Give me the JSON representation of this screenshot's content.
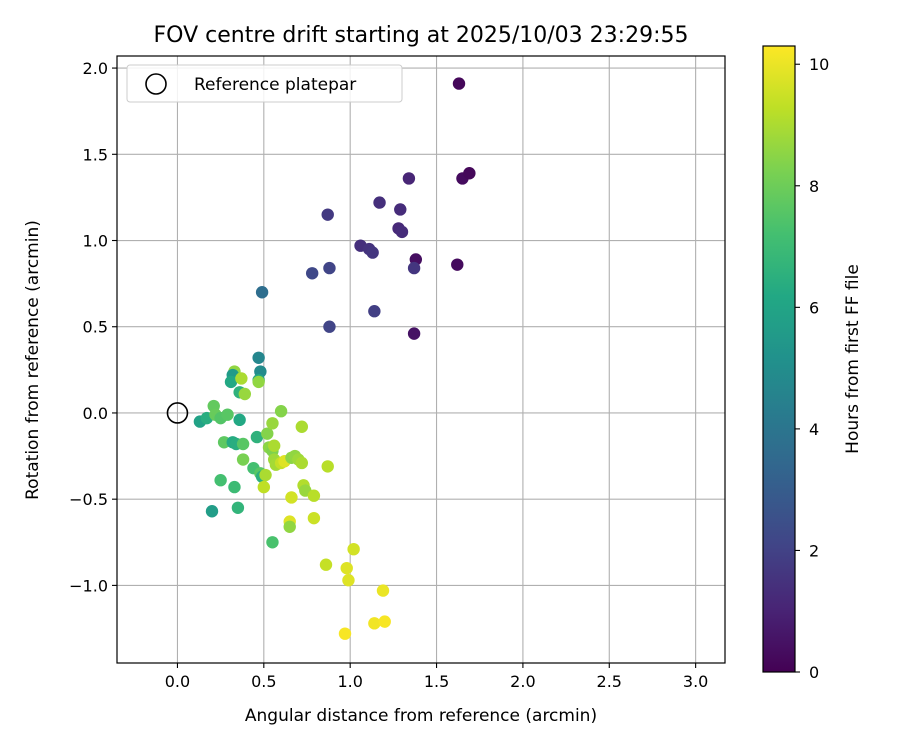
{
  "chart_data": {
    "type": "scatter",
    "title": "FOV centre drift starting at 2025/10/03 23:29:55",
    "xlabel": "Angular distance from reference (arcmin)",
    "ylabel": "Rotation from reference (arcmin)",
    "xlim": [
      -0.35,
      3.17
    ],
    "ylim": [
      -1.45,
      2.07
    ],
    "xticks": [
      0.0,
      0.5,
      1.0,
      1.5,
      2.0,
      2.5,
      3.0
    ],
    "xtick_labels": [
      "0.0",
      "0.5",
      "1.0",
      "1.5",
      "2.0",
      "2.5",
      "3.0"
    ],
    "yticks": [
      -1.0,
      -0.5,
      0.0,
      0.5,
      1.0,
      1.5,
      2.0
    ],
    "ytick_labels": [
      "−1.0",
      "−0.5",
      "0.0",
      "0.5",
      "1.0",
      "1.5",
      "2.0"
    ],
    "grid": true,
    "legend": {
      "placement": "top-left",
      "label": "Reference platepar"
    },
    "reference_point": {
      "x": 0.0,
      "y": 0.0
    },
    "colorbar": {
      "label": "Hours from first FF file",
      "range": [
        0,
        10.3
      ],
      "ticks": [
        0,
        2,
        4,
        6,
        8,
        10
      ],
      "tick_labels": [
        "0",
        "2",
        "4",
        "6",
        "8",
        "10"
      ],
      "colormap": "viridis"
    },
    "points": [
      {
        "x": 1.63,
        "y": 1.91,
        "h": 0.2
      },
      {
        "x": 1.65,
        "y": 1.36,
        "h": 0.3
      },
      {
        "x": 1.69,
        "y": 1.39,
        "h": 0.2
      },
      {
        "x": 1.34,
        "y": 1.36,
        "h": 1.1
      },
      {
        "x": 1.38,
        "y": 0.89,
        "h": 0.4
      },
      {
        "x": 1.62,
        "y": 0.86,
        "h": 0.3
      },
      {
        "x": 1.37,
        "y": 0.46,
        "h": 0.5
      },
      {
        "x": 1.17,
        "y": 1.22,
        "h": 1.4
      },
      {
        "x": 1.29,
        "y": 1.18,
        "h": 1.3
      },
      {
        "x": 1.28,
        "y": 1.07,
        "h": 1.2
      },
      {
        "x": 1.3,
        "y": 1.05,
        "h": 1.3
      },
      {
        "x": 1.37,
        "y": 0.84,
        "h": 1.6
      },
      {
        "x": 0.87,
        "y": 1.15,
        "h": 1.7
      },
      {
        "x": 1.06,
        "y": 0.97,
        "h": 1.4
      },
      {
        "x": 1.11,
        "y": 0.95,
        "h": 1.5
      },
      {
        "x": 1.13,
        "y": 0.93,
        "h": 1.6
      },
      {
        "x": 1.14,
        "y": 0.59,
        "h": 1.9
      },
      {
        "x": 0.78,
        "y": 0.81,
        "h": 2.2
      },
      {
        "x": 0.88,
        "y": 0.84,
        "h": 2.1
      },
      {
        "x": 0.88,
        "y": 0.5,
        "h": 2.1
      },
      {
        "x": 0.49,
        "y": 0.7,
        "h": 3.7
      },
      {
        "x": 0.47,
        "y": 0.32,
        "h": 4.7
      },
      {
        "x": 0.48,
        "y": 0.24,
        "h": 4.9
      },
      {
        "x": 0.47,
        "y": 0.19,
        "h": 6.0
      },
      {
        "x": 0.33,
        "y": 0.24,
        "h": 8.6
      },
      {
        "x": 0.32,
        "y": 0.22,
        "h": 5.6
      },
      {
        "x": 0.31,
        "y": 0.18,
        "h": 6.2
      },
      {
        "x": 0.37,
        "y": 0.2,
        "h": 9.0
      },
      {
        "x": 0.36,
        "y": 0.12,
        "h": 6.6
      },
      {
        "x": 0.39,
        "y": 0.11,
        "h": 8.7
      },
      {
        "x": 0.47,
        "y": 0.18,
        "h": 8.6
      },
      {
        "x": 0.13,
        "y": -0.05,
        "h": 5.9
      },
      {
        "x": 0.17,
        "y": -0.03,
        "h": 6.4
      },
      {
        "x": 0.21,
        "y": 0.04,
        "h": 7.8
      },
      {
        "x": 0.22,
        "y": -0.01,
        "h": 7.9
      },
      {
        "x": 0.25,
        "y": -0.03,
        "h": 7.5
      },
      {
        "x": 0.29,
        "y": -0.01,
        "h": 7.6
      },
      {
        "x": 0.36,
        "y": -0.04,
        "h": 6.2
      },
      {
        "x": 0.27,
        "y": -0.17,
        "h": 7.7
      },
      {
        "x": 0.32,
        "y": -0.17,
        "h": 6.3
      },
      {
        "x": 0.34,
        "y": -0.18,
        "h": 6.4
      },
      {
        "x": 0.38,
        "y": -0.18,
        "h": 7.6
      },
      {
        "x": 0.46,
        "y": -0.14,
        "h": 6.6
      },
      {
        "x": 0.52,
        "y": -0.12,
        "h": 8.4
      },
      {
        "x": 0.55,
        "y": -0.06,
        "h": 8.7
      },
      {
        "x": 0.6,
        "y": 0.01,
        "h": 8.4
      },
      {
        "x": 0.38,
        "y": -0.27,
        "h": 8.2
      },
      {
        "x": 0.44,
        "y": -0.32,
        "h": 7.2
      },
      {
        "x": 0.48,
        "y": -0.35,
        "h": 7.6
      },
      {
        "x": 0.49,
        "y": -0.37,
        "h": 6.5
      },
      {
        "x": 0.51,
        "y": -0.36,
        "h": 9.0
      },
      {
        "x": 0.53,
        "y": -0.2,
        "h": 8.5
      },
      {
        "x": 0.55,
        "y": -0.22,
        "h": 8.3
      },
      {
        "x": 0.56,
        "y": -0.19,
        "h": 9.0
      },
      {
        "x": 0.56,
        "y": -0.27,
        "h": 8.8
      },
      {
        "x": 0.57,
        "y": -0.3,
        "h": 8.9
      },
      {
        "x": 0.6,
        "y": -0.29,
        "h": 9.4
      },
      {
        "x": 0.62,
        "y": -0.28,
        "h": 9.8
      },
      {
        "x": 0.66,
        "y": -0.26,
        "h": 8.5
      },
      {
        "x": 0.68,
        "y": -0.25,
        "h": 8.6
      },
      {
        "x": 0.7,
        "y": -0.27,
        "h": 8.8
      },
      {
        "x": 0.72,
        "y": -0.29,
        "h": 9.0
      },
      {
        "x": 0.72,
        "y": -0.08,
        "h": 9.0
      },
      {
        "x": 0.5,
        "y": -0.43,
        "h": 9.3
      },
      {
        "x": 0.33,
        "y": -0.43,
        "h": 7.0
      },
      {
        "x": 0.25,
        "y": -0.39,
        "h": 7.2
      },
      {
        "x": 0.2,
        "y": -0.57,
        "h": 5.7
      },
      {
        "x": 0.35,
        "y": -0.55,
        "h": 6.7
      },
      {
        "x": 0.73,
        "y": -0.42,
        "h": 9.1
      },
      {
        "x": 0.74,
        "y": -0.45,
        "h": 8.7
      },
      {
        "x": 0.66,
        "y": -0.49,
        "h": 9.6
      },
      {
        "x": 0.79,
        "y": -0.48,
        "h": 9.2
      },
      {
        "x": 0.87,
        "y": -0.31,
        "h": 9.2
      },
      {
        "x": 0.65,
        "y": -0.63,
        "h": 9.8
      },
      {
        "x": 0.65,
        "y": -0.66,
        "h": 8.6
      },
      {
        "x": 0.79,
        "y": -0.61,
        "h": 9.5
      },
      {
        "x": 0.55,
        "y": -0.75,
        "h": 7.3
      },
      {
        "x": 0.86,
        "y": -0.88,
        "h": 9.4
      },
      {
        "x": 1.02,
        "y": -0.79,
        "h": 9.6
      },
      {
        "x": 0.98,
        "y": -0.9,
        "h": 9.8
      },
      {
        "x": 0.99,
        "y": -0.97,
        "h": 9.8
      },
      {
        "x": 1.19,
        "y": -1.03,
        "h": 10.0
      },
      {
        "x": 1.14,
        "y": -1.22,
        "h": 10.1
      },
      {
        "x": 1.2,
        "y": -1.21,
        "h": 10.2
      },
      {
        "x": 0.97,
        "y": -1.28,
        "h": 10.2
      }
    ]
  }
}
